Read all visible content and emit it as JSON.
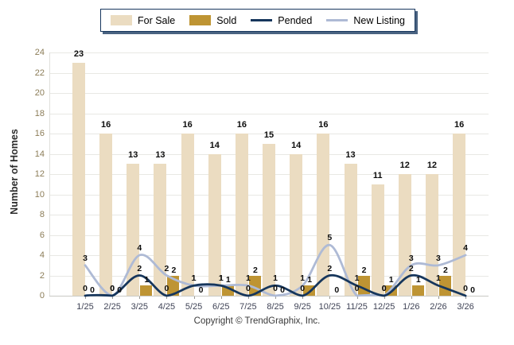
{
  "legend": {
    "items": [
      {
        "label": "For Sale",
        "type": "bar",
        "color": "#EBDCC1"
      },
      {
        "label": "Sold",
        "type": "bar",
        "color": "#BE9433"
      },
      {
        "label": "Pended",
        "type": "line",
        "color": "#16365C"
      },
      {
        "label": "New Listing",
        "type": "line",
        "color": "#AEBAD5"
      }
    ]
  },
  "footer": {
    "copyright": "Copyright © TrendGraphix, Inc."
  },
  "chart_data": {
    "type": "bar",
    "subtype": "grouped bars with smoothed overlay lines",
    "title": "",
    "ylabel": "Number of Homes",
    "xlabel": "",
    "ylim": [
      0,
      24
    ],
    "ytick_step": 2,
    "grid": true,
    "legend_position": "top",
    "categories": [
      "1/25",
      "2/25",
      "3/25",
      "4/25",
      "5/25",
      "6/25",
      "7/25",
      "8/25",
      "9/25",
      "10/25",
      "11/25",
      "12/25",
      "1/26",
      "2/26",
      "3/26"
    ],
    "series": [
      {
        "name": "For Sale",
        "type": "bar",
        "color": "#EBDCC1",
        "values": [
          23,
          16,
          13,
          13,
          16,
          14,
          16,
          15,
          14,
          16,
          13,
          11,
          12,
          12,
          16
        ]
      },
      {
        "name": "Sold",
        "type": "bar",
        "color": "#BE9433",
        "values": [
          0,
          0,
          1,
          2,
          0,
          1,
          2,
          0,
          1,
          0,
          2,
          1,
          1,
          2,
          0
        ]
      },
      {
        "name": "Pended",
        "type": "line",
        "color": "#16365C",
        "values": [
          0,
          0,
          2,
          0,
          1,
          1,
          0,
          1,
          0,
          2,
          1,
          0,
          2,
          1,
          0
        ]
      },
      {
        "name": "New Listing",
        "type": "line",
        "color": "#AEBAD5",
        "values": [
          3,
          0,
          4,
          2,
          1,
          1,
          1,
          0,
          1,
          5,
          0,
          0,
          3,
          3,
          4
        ]
      }
    ],
    "value_labels_shown": true
  }
}
